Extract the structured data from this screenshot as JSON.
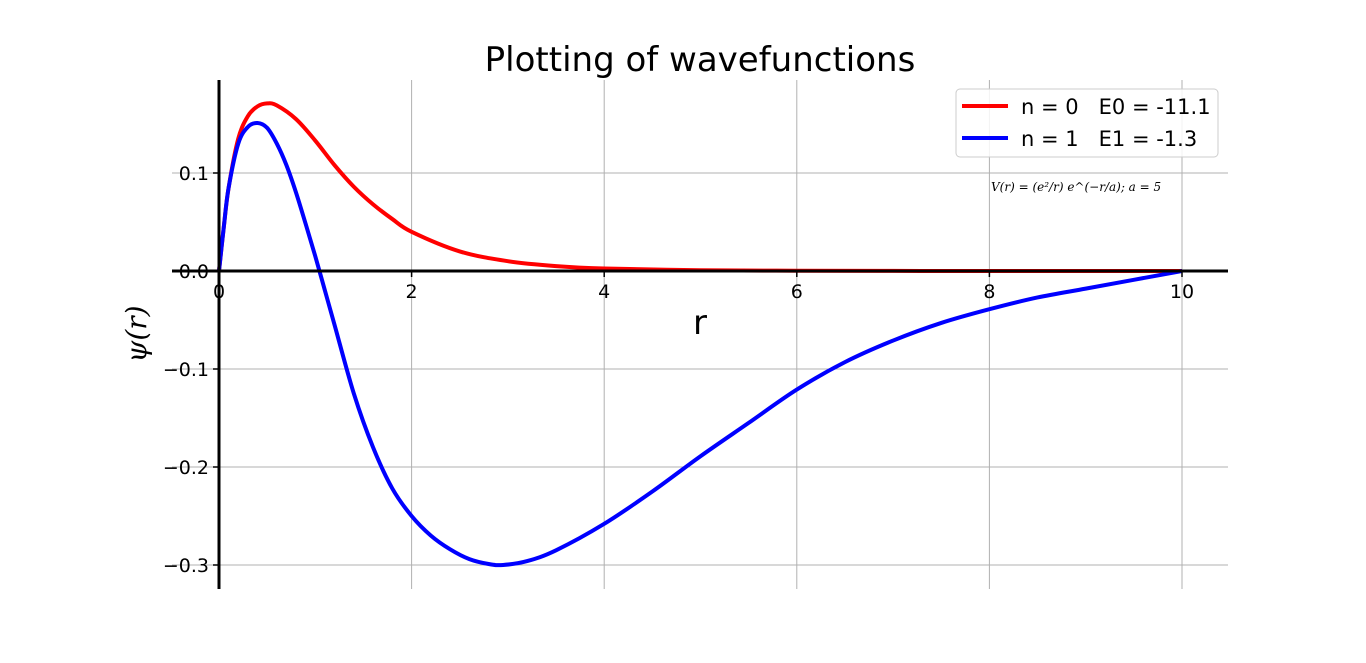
{
  "chart_data": {
    "type": "line",
    "title": "Plotting of wavefunctions",
    "xlabel": "r",
    "ylabel": "ψ(r)",
    "xlim": [
      0,
      10.5
    ],
    "ylim": [
      -0.325,
      0.195
    ],
    "xticks": [
      0,
      2,
      4,
      6,
      8,
      10
    ],
    "xtick_labels": [
      "0",
      "2",
      "4",
      "6",
      "8",
      "10"
    ],
    "yticks": [
      0.1,
      0.0,
      -0.1,
      -0.2,
      -0.3
    ],
    "ytick_labels": [
      "0.1",
      "0.0",
      "−0.1",
      "−0.2",
      "−0.3"
    ],
    "grid": true,
    "legend_position": "upper-right",
    "annotation": "V(r) = (e²/r) e^(−r/a);  a = 5",
    "series": [
      {
        "name": "n = 0   E0 = -11.1",
        "color": "#ff0000",
        "points": [
          [
            0,
            0
          ],
          [
            0.05,
            0.045
          ],
          [
            0.1,
            0.085
          ],
          [
            0.2,
            0.135
          ],
          [
            0.3,
            0.158
          ],
          [
            0.4,
            0.168
          ],
          [
            0.5,
            0.171
          ],
          [
            0.6,
            0.169
          ],
          [
            0.8,
            0.155
          ],
          [
            1.0,
            0.133
          ],
          [
            1.2,
            0.108
          ],
          [
            1.4,
            0.086
          ],
          [
            1.6,
            0.068
          ],
          [
            1.8,
            0.053
          ],
          [
            2.0,
            0.04
          ],
          [
            2.5,
            0.02
          ],
          [
            3.0,
            0.01
          ],
          [
            3.5,
            0.005
          ],
          [
            4.0,
            0.0025
          ],
          [
            5.0,
            0.0008
          ],
          [
            6.0,
            0.0003
          ],
          [
            7.0,
            0.0001
          ],
          [
            8.0,
            0.0
          ],
          [
            10.0,
            0.0
          ]
        ]
      },
      {
        "name": "n = 1   E1 = -1.3",
        "color": "#0000ff",
        "points": [
          [
            0,
            0
          ],
          [
            0.05,
            0.045
          ],
          [
            0.1,
            0.085
          ],
          [
            0.2,
            0.13
          ],
          [
            0.3,
            0.147
          ],
          [
            0.4,
            0.151
          ],
          [
            0.5,
            0.146
          ],
          [
            0.6,
            0.13
          ],
          [
            0.7,
            0.108
          ],
          [
            0.8,
            0.08
          ],
          [
            0.9,
            0.048
          ],
          [
            1.0,
            0.015
          ],
          [
            1.1,
            -0.02
          ],
          [
            1.2,
            -0.055
          ],
          [
            1.4,
            -0.125
          ],
          [
            1.6,
            -0.18
          ],
          [
            1.8,
            -0.222
          ],
          [
            2.0,
            -0.25
          ],
          [
            2.2,
            -0.27
          ],
          [
            2.4,
            -0.284
          ],
          [
            2.6,
            -0.294
          ],
          [
            2.8,
            -0.299
          ],
          [
            2.95,
            -0.3
          ],
          [
            3.2,
            -0.296
          ],
          [
            3.5,
            -0.285
          ],
          [
            4.0,
            -0.258
          ],
          [
            4.5,
            -0.225
          ],
          [
            5.0,
            -0.189
          ],
          [
            5.5,
            -0.155
          ],
          [
            6.0,
            -0.121
          ],
          [
            6.5,
            -0.093
          ],
          [
            7.0,
            -0.071
          ],
          [
            7.5,
            -0.053
          ],
          [
            8.0,
            -0.039
          ],
          [
            8.5,
            -0.027
          ],
          [
            9.0,
            -0.018
          ],
          [
            9.5,
            -0.009
          ],
          [
            10.0,
            0.0
          ]
        ]
      }
    ]
  }
}
